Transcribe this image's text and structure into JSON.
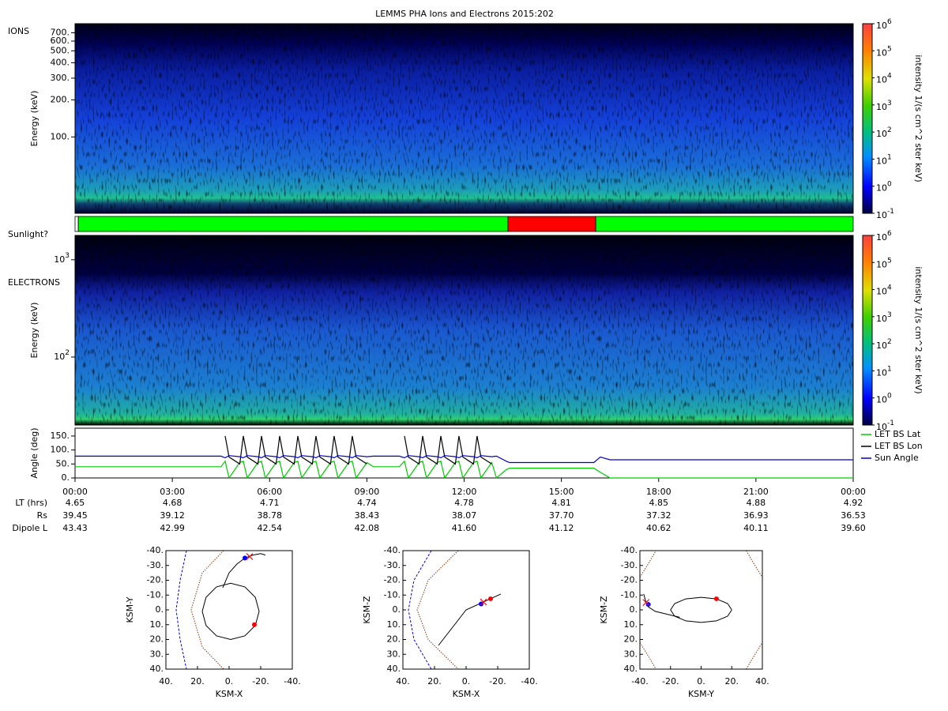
{
  "title": "LEMMS PHA Ions and Electrons  2015:202",
  "chart_data": [
    {
      "type": "spectrogram",
      "label": "IONS",
      "ylabel": "Energy (keV)",
      "log_y": true,
      "xlim": [
        0,
        24
      ],
      "ylim": [
        24,
        830
      ],
      "yticks": [
        {
          "value": 100,
          "label": "100."
        },
        {
          "value": 200,
          "label": "200."
        },
        {
          "value": 300,
          "label": "300."
        },
        {
          "value": 400,
          "label": "400."
        },
        {
          "value": 500,
          "label": "500."
        },
        {
          "value": 600,
          "label": "600."
        },
        {
          "value": 700,
          "label": "700."
        }
      ],
      "colorbar": {
        "label": "intensity 1/(s cm^2 ster keV)",
        "log": true,
        "lim": [
          0.1,
          1000000
        ],
        "ticks": [
          {
            "value": 0.1,
            "label": "10",
            "exponent": "-1"
          },
          {
            "value": 1,
            "label": "10",
            "exponent": "0"
          },
          {
            "value": 10,
            "label": "10",
            "exponent": "1"
          },
          {
            "value": 100,
            "label": "10",
            "exponent": "2"
          },
          {
            "value": 1000,
            "label": "10",
            "exponent": "3"
          },
          {
            "value": 10000,
            "label": "10",
            "exponent": "4"
          },
          {
            "value": 100000,
            "label": "10",
            "exponent": "5"
          },
          {
            "value": 1000000,
            "label": "10",
            "exponent": "6"
          }
        ]
      }
    },
    {
      "type": "timeline",
      "label": "Sunlight?",
      "xlim": [
        0,
        24
      ],
      "segments": [
        {
          "start": 0,
          "end": 0.1,
          "color": "#ffffff"
        },
        {
          "start": 0.1,
          "end": 13.35,
          "color": "#00ff00"
        },
        {
          "start": 13.35,
          "end": 16.06,
          "color": "#ff0000"
        },
        {
          "start": 16.06,
          "end": 24,
          "color": "#00ff00"
        }
      ]
    },
    {
      "type": "spectrogram",
      "label": "ELECTRONS",
      "ylabel": "Energy (keV)",
      "log_y": true,
      "xlim": [
        0,
        24
      ],
      "ylim": [
        20,
        1780
      ],
      "yticks": [
        {
          "value": 100,
          "label": "10",
          "exponent": "2"
        },
        {
          "value": 1000,
          "label": "10",
          "exponent": "3"
        }
      ],
      "colorbar": {
        "label": "intensity 1/(s cm^2 ster keV)",
        "log": true,
        "lim": [
          0.1,
          1000000
        ],
        "ticks": [
          {
            "value": 0.1,
            "label": "10",
            "exponent": "-1"
          },
          {
            "value": 1,
            "label": "10",
            "exponent": "0"
          },
          {
            "value": 10,
            "label": "10",
            "exponent": "1"
          },
          {
            "value": 100,
            "label": "10",
            "exponent": "2"
          },
          {
            "value": 1000,
            "label": "10",
            "exponent": "3"
          },
          {
            "value": 10000,
            "label": "10",
            "exponent": "4"
          },
          {
            "value": 100000,
            "label": "10",
            "exponent": "5"
          },
          {
            "value": 1000000,
            "label": "10",
            "exponent": "6"
          }
        ]
      }
    },
    {
      "type": "line",
      "ylabel": "Angle (deg)",
      "xlim": [
        0,
        24
      ],
      "ylim": [
        0,
        178
      ],
      "legend": "right",
      "yticks": [
        {
          "value": 0,
          "label": "0."
        },
        {
          "value": 50,
          "label": "50."
        },
        {
          "value": 100,
          "label": "100."
        },
        {
          "value": 150,
          "label": "150."
        }
      ],
      "xticks": [
        {
          "value": 0,
          "label": "00:00"
        },
        {
          "value": 3,
          "label": "03:00"
        },
        {
          "value": 6,
          "label": "06:00"
        },
        {
          "value": 9,
          "label": "09:00"
        },
        {
          "value": 12,
          "label": "12:00"
        },
        {
          "value": 15,
          "label": "15:00"
        },
        {
          "value": 18,
          "label": "18:00"
        },
        {
          "value": 21,
          "label": "21:00"
        },
        {
          "value": 24,
          "label": "00:00"
        }
      ],
      "x": [
        0,
        4.5,
        4.63,
        4.75,
        5.08,
        5.19,
        5.31,
        5.64,
        5.75,
        5.87,
        6.2,
        6.31,
        6.43,
        6.76,
        6.87,
        6.99,
        7.32,
        7.43,
        7.55,
        7.88,
        7.99,
        8.11,
        8.44,
        8.55,
        8.67,
        9.0,
        9.2,
        10.0,
        10.16,
        10.28,
        10.61,
        10.72,
        10.84,
        11.17,
        11.28,
        11.4,
        11.73,
        11.84,
        11.96,
        12.29,
        12.4,
        12.52,
        12.85,
        13.0,
        13.3,
        13.4,
        16.0,
        16.2,
        16.5,
        24
      ],
      "series": [
        {
          "name": "LET BS Lat",
          "color": "#00cc00",
          "values": [
            40,
            40,
            60,
            0,
            55,
            60,
            0,
            55,
            60,
            0,
            55,
            60,
            0,
            55,
            60,
            0,
            55,
            60,
            0,
            55,
            60,
            0,
            55,
            60,
            0,
            55,
            40,
            40,
            60,
            0,
            55,
            60,
            0,
            55,
            60,
            0,
            55,
            60,
            0,
            55,
            60,
            0,
            55,
            0,
            30,
            35,
            35,
            20,
            0,
            0
          ]
        },
        {
          "name": "LET BS Lon",
          "color": "#000000",
          "values": [
            null,
            null,
            150,
            75,
            50,
            150,
            75,
            50,
            150,
            75,
            50,
            150,
            75,
            50,
            150,
            75,
            50,
            150,
            75,
            50,
            150,
            75,
            50,
            150,
            75,
            50,
            null,
            null,
            150,
            75,
            50,
            150,
            75,
            50,
            150,
            75,
            50,
            150,
            75,
            50,
            150,
            75,
            50,
            null,
            null,
            null,
            null,
            null,
            null,
            null
          ]
        },
        {
          "name": "Sun Angle",
          "color": "#0000cc",
          "values": [
            78,
            78,
            72,
            80,
            76,
            72,
            80,
            76,
            72,
            80,
            76,
            72,
            80,
            76,
            72,
            80,
            76,
            72,
            80,
            76,
            72,
            80,
            76,
            72,
            80,
            76,
            78,
            78,
            72,
            80,
            76,
            72,
            80,
            76,
            72,
            80,
            76,
            72,
            80,
            76,
            72,
            80,
            76,
            78,
            60,
            55,
            55,
            75,
            65,
            65
          ]
        }
      ]
    },
    {
      "type": "orbit",
      "xlabel": "KSM-X",
      "ylabel": "KSM-Y",
      "xlim": [
        40,
        -40
      ],
      "ylim": [
        40,
        -40
      ],
      "xticks": [
        {
          "value": 40,
          "label": "40."
        },
        {
          "value": 20,
          "label": "20."
        },
        {
          "value": 0,
          "label": "0."
        },
        {
          "value": -20,
          "label": "-20."
        },
        {
          "value": -40,
          "label": "-40."
        }
      ],
      "yticks": [
        {
          "value": -40,
          "label": "-40."
        },
        {
          "value": -30,
          "label": "-30."
        },
        {
          "value": -20,
          "label": "-20."
        },
        {
          "value": -10,
          "label": "-10."
        },
        {
          "value": 0,
          "label": "0."
        },
        {
          "value": 10,
          "label": "10."
        },
        {
          "value": 20,
          "label": "20."
        },
        {
          "value": 30,
          "label": "30."
        },
        {
          "value": 40,
          "label": "40."
        }
      ],
      "series": [
        {
          "color": "#0000ff",
          "style": "dashed",
          "x": [
            27,
            31,
            33.5,
            31,
            27
          ],
          "values": [
            -40,
            -20,
            0,
            20,
            40
          ]
        },
        {
          "color": "#8b3a0f",
          "style": "dotted",
          "x": [
            3.5,
            17,
            24,
            17,
            3.5
          ],
          "values": [
            -40,
            -25,
            0,
            25,
            40
          ]
        },
        {
          "color": "#000000",
          "style": "solid",
          "x": [
            17,
            14.6,
            8,
            -1,
            -10,
            -16.6,
            -19,
            -16.6,
            -10,
            -1,
            8,
            14.6,
            17
          ],
          "values": [
            1,
            10.5,
            17.5,
            20,
            17.5,
            10.5,
            1,
            -8.5,
            -15.5,
            -18,
            -15.5,
            -8.5,
            1
          ]
        },
        {
          "color": "#000000",
          "style": "solid",
          "x": [
            4,
            0,
            -5,
            -10,
            -15,
            -20,
            -23
          ],
          "values": [
            -15,
            -25,
            -31,
            -35,
            -37,
            -38,
            -37
          ]
        },
        {
          "color": "#0000ff",
          "style": "dot",
          "x": [
            -10
          ],
          "values": [
            -35
          ]
        },
        {
          "color": "#ff0000",
          "style": "cross",
          "x": [
            -13
          ],
          "values": [
            -36
          ]
        },
        {
          "color": "#ff0000",
          "style": "dot",
          "x": [
            -16
          ],
          "values": [
            10
          ]
        }
      ]
    },
    {
      "type": "orbit",
      "xlabel": "KSM-X",
      "ylabel": "KSM-Z",
      "xlim": [
        40,
        -40
      ],
      "ylim": [
        40,
        -40
      ],
      "xticks": [
        {
          "value": 40,
          "label": "40."
        },
        {
          "value": 20,
          "label": "20."
        },
        {
          "value": 0,
          "label": "0."
        },
        {
          "value": -20,
          "label": "-20."
        },
        {
          "value": -40,
          "label": "-40."
        }
      ],
      "yticks": [
        {
          "value": -40,
          "label": "-40."
        },
        {
          "value": -30,
          "label": "-30."
        },
        {
          "value": -20,
          "label": "-20."
        },
        {
          "value": -10,
          "label": "-10."
        },
        {
          "value": 0,
          "label": "0."
        },
        {
          "value": 10,
          "label": "10."
        },
        {
          "value": 20,
          "label": "20."
        },
        {
          "value": 30,
          "label": "30."
        },
        {
          "value": 40,
          "label": "40."
        }
      ],
      "series": [
        {
          "color": "#0000ff",
          "style": "dashed",
          "x": [
            22,
            33,
            36.5,
            33,
            22
          ],
          "values": [
            -40,
            -20,
            0,
            20,
            40
          ]
        },
        {
          "color": "#8b3a0f",
          "style": "dotted",
          "x": [
            5,
            24,
            31,
            24,
            5
          ],
          "values": [
            -40,
            -20,
            0,
            20,
            40
          ]
        },
        {
          "color": "#000000",
          "style": "solid",
          "x": [
            17.5,
            0,
            -22
          ],
          "values": [
            24,
            0,
            -10.7
          ]
        },
        {
          "color": "#0000ff",
          "style": "dot",
          "x": [
            -9.5
          ],
          "values": [
            -4
          ]
        },
        {
          "color": "#ff0000",
          "style": "cross",
          "x": [
            -11
          ],
          "values": [
            -5.3
          ]
        },
        {
          "color": "#ff0000",
          "style": "dot",
          "x": [
            -15.5
          ],
          "values": [
            -7.5
          ]
        }
      ]
    },
    {
      "type": "orbit",
      "xlabel": "KSM-Y",
      "ylabel": "KSM-Z",
      "xlim": [
        -40,
        40
      ],
      "ylim": [
        40,
        -40
      ],
      "xticks": [
        {
          "value": -40,
          "label": "-40."
        },
        {
          "value": -20,
          "label": "-20."
        },
        {
          "value": 0,
          "label": "0."
        },
        {
          "value": 20,
          "label": "20."
        },
        {
          "value": 40,
          "label": "40."
        }
      ],
      "yticks": [
        {
          "value": -40,
          "label": "-40."
        },
        {
          "value": -30,
          "label": "-30."
        },
        {
          "value": -20,
          "label": "-20."
        },
        {
          "value": -10,
          "label": "-10."
        },
        {
          "value": 0,
          "label": "0."
        },
        {
          "value": 10,
          "label": "10."
        },
        {
          "value": 20,
          "label": "20."
        },
        {
          "value": 30,
          "label": "30."
        },
        {
          "value": 40,
          "label": "40."
        }
      ],
      "series": [
        {
          "color": "#8b3a0f",
          "style": "dotted",
          "x": [
            -40,
            -34,
            -29.5
          ],
          "values": [
            -22,
            -32,
            -40
          ]
        },
        {
          "color": "#8b3a0f",
          "style": "dotted",
          "x": [
            29.5,
            34,
            40
          ],
          "values": [
            -40,
            -32,
            -22
          ]
        },
        {
          "color": "#8b3a0f",
          "style": "dotted",
          "x": [
            -40,
            -34,
            -29.5
          ],
          "values": [
            22,
            32,
            40
          ]
        },
        {
          "color": "#8b3a0f",
          "style": "dotted",
          "x": [
            29.5,
            34,
            40
          ],
          "values": [
            40,
            32,
            22
          ]
        },
        {
          "color": "#000000",
          "style": "solid",
          "x": [
            20,
            17.3,
            10,
            0,
            -10,
            -17.3,
            -20,
            -17.3,
            -10,
            0,
            10,
            17.3,
            20
          ],
          "values": [
            0,
            4.25,
            7.4,
            8.5,
            7.4,
            4.25,
            0,
            -4.25,
            -7.4,
            -8.5,
            -7.4,
            -4.25,
            0
          ]
        },
        {
          "color": "#000000",
          "style": "solid",
          "x": [
            -37.5,
            -36,
            -34.5,
            -30,
            -22,
            -14
          ],
          "values": [
            -10.7,
            -5,
            -2,
            1,
            3,
            5
          ]
        },
        {
          "color": "#0000ff",
          "style": "dot",
          "x": [
            -34.5
          ],
          "values": [
            -3.7
          ]
        },
        {
          "color": "#ff0000",
          "style": "cross",
          "x": [
            -36
          ],
          "values": [
            -5
          ]
        },
        {
          "color": "#ff0000",
          "style": "dot",
          "x": [
            10
          ],
          "values": [
            -7.5
          ]
        }
      ]
    }
  ],
  "ephemeris": {
    "rows": [
      {
        "label": "LT (hrs)",
        "values": [
          "4.65",
          "4.68",
          "4.71",
          "4.74",
          "4.78",
          "4.81",
          "4.85",
          "4.88",
          "4.92"
        ]
      },
      {
        "label": "Rs",
        "values": [
          "39.45",
          "39.12",
          "38.78",
          "38.43",
          "38.07",
          "37.70",
          "37.32",
          "36.93",
          "36.53"
        ]
      },
      {
        "label": "Dipole L",
        "values": [
          "43.43",
          "42.99",
          "42.54",
          "42.08",
          "41.60",
          "41.12",
          "40.62",
          "40.11",
          "39.60"
        ]
      }
    ]
  }
}
